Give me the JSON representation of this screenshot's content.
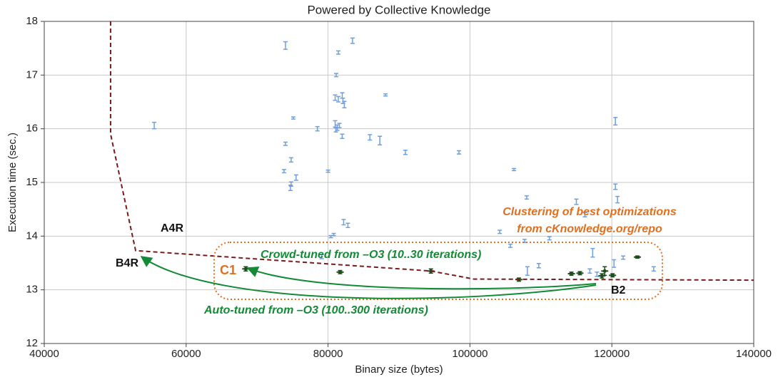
{
  "chart_data": {
    "type": "scatter",
    "title": "Powered by Collective Knowledge",
    "x_label": "Binary size (bytes)",
    "y_label": "Execution time (sec.)",
    "xlim": [
      40000,
      140000
    ],
    "ylim": [
      12,
      18
    ],
    "xticks": [
      40000,
      60000,
      80000,
      100000,
      120000,
      140000
    ],
    "yticks": [
      12,
      13,
      14,
      15,
      16,
      17,
      18
    ],
    "grid": true,
    "series": [
      {
        "mode": "errorbar",
        "color": "#6f9fe0",
        "x": [
          55500,
          74000,
          81450,
          83450,
          81150,
          74000,
          75100,
          78500,
          74800,
          73800,
          75500,
          74800,
          74700,
          80000,
          81000,
          81450,
          82000,
          82100,
          82300,
          81000,
          81300,
          81600,
          81100,
          82000,
          85900,
          87300,
          90900,
          98450,
          88100,
          106200,
          108000,
          82200,
          82800,
          80400,
          80800,
          79100,
          104200,
          105700,
          107700,
          111200,
          115000,
          116200,
          120500,
          120500,
          120800,
          117300,
          120300,
          121600,
          125900,
          108100,
          109700,
          116900,
          117900
        ],
        "values": [
          16.06,
          17.55,
          17.42,
          17.64,
          17.0,
          15.72,
          16.2,
          16.0,
          15.42,
          15.21,
          15.09,
          14.97,
          14.9,
          15.21,
          16.58,
          16.55,
          16.62,
          16.52,
          16.45,
          16.09,
          16.02,
          16.06,
          15.98,
          15.86,
          15.84,
          15.78,
          15.56,
          15.56,
          16.63,
          15.24,
          14.72,
          14.26,
          14.2,
          13.99,
          14.03,
          13.62,
          14.08,
          13.82,
          13.91,
          13.96,
          14.64,
          14.4,
          16.14,
          14.92,
          14.68,
          13.69,
          13.49,
          13.6,
          13.39,
          13.35,
          13.45,
          13.35,
          13.29
        ],
        "errors": [
          0.06,
          0.07,
          0.03,
          0.05,
          0.03,
          0.03,
          0.02,
          0.04,
          0.04,
          0.03,
          0.05,
          0.04,
          0.05,
          0.02,
          0.05,
          0.05,
          0.05,
          0.05,
          0.06,
          0.06,
          0.05,
          0.04,
          0.04,
          0.04,
          0.05,
          0.08,
          0.04,
          0.03,
          0.02,
          0.02,
          0.03,
          0.05,
          0.04,
          0.02,
          0.02,
          0.04,
          0.03,
          0.03,
          0.03,
          0.03,
          0.05,
          0.04,
          0.07,
          0.05,
          0.06,
          0.08,
          0.07,
          0.03,
          0.04,
          0.08,
          0.04,
          0.04,
          0.04
        ]
      },
      {
        "mode": "errorbar-marker",
        "color": "#1d4d1d",
        "x": [
          68400,
          81700,
          94500,
          106900,
          114300,
          115500,
          118600,
          119000,
          120100,
          123600
        ],
        "values": [
          13.39,
          13.33,
          13.35,
          13.19,
          13.3,
          13.31,
          13.26,
          13.35,
          13.27,
          13.61
        ],
        "errors": [
          0.04,
          0.03,
          0.04,
          0.03,
          0.03,
          0.03,
          0.04,
          0.08,
          0.03,
          0.02
        ]
      },
      {
        "mode": "dashed-line",
        "color": "#7a1a1a",
        "x": [
          49350,
          49350,
          52880,
          94520,
          100560,
          140000
        ],
        "values": [
          18.0,
          15.9,
          13.73,
          13.35,
          13.2,
          13.18
        ]
      }
    ],
    "annotations": [
      {
        "text": "A4R",
        "color": "#111111"
      },
      {
        "text": "B4R",
        "color": "#111111"
      },
      {
        "text": "C1",
        "color": "#e07020"
      },
      {
        "text": "B2",
        "color": "#111111"
      },
      {
        "text": "Crowd-tuned from –O3 (10..30 iterations)",
        "color": "#138a36"
      },
      {
        "text": "Auto-tuned from –O3 (100..300 iterations)",
        "color": "#138a36"
      },
      {
        "text": "Clustering of best optimizations",
        "color": "#e07020"
      },
      {
        "text": "from cKnowledge.org/repo",
        "color": "#e07020"
      }
    ]
  }
}
